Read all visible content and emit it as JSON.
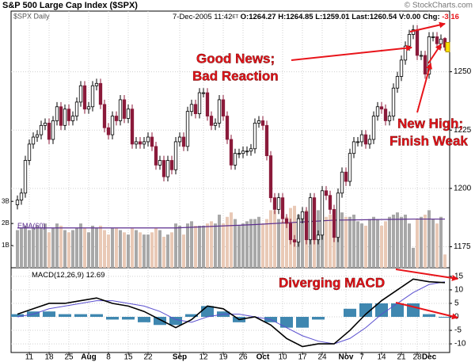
{
  "chart_data": {
    "type": "candlestick",
    "title": "S&P 500 Large Cap Index ($SPX)",
    "source": "© StockCharts.com",
    "symbol_label": "$SPX Daily",
    "date": "7-Dec-2005 11:42",
    "timezone": "ET",
    "quote": [
      "O:1264.27",
      "H:1264.85",
      "L:1259.01",
      "Last:1260.54",
      "V:0.00"
    ],
    "change_label": "Chg:",
    "change": "-3.16",
    "up_color": "#000000",
    "down_color": "#8b1a3a",
    "open": [
      1193,
      1195,
      1198,
      1212,
      1219,
      1222,
      1223,
      1227,
      1228,
      1221,
      1229,
      1235,
      1227,
      1234,
      1229,
      1231,
      1237,
      1244,
      1234,
      1235,
      1244,
      1245,
      1236,
      1226,
      1223,
      1231,
      1229,
      1238,
      1230,
      1234,
      1219,
      1220,
      1219,
      1220,
      1222,
      1218,
      1210,
      1212,
      1205,
      1212,
      1208,
      1220,
      1222,
      1218,
      1233,
      1236,
      1232,
      1241,
      1241,
      1231,
      1227,
      1228,
      1238,
      1231,
      1221,
      1210,
      1215,
      1215,
      1216,
      1216,
      1217,
      1228,
      1229,
      1227,
      1214,
      1196,
      1191,
      1196,
      1187,
      1185,
      1178,
      1177,
      1187,
      1190,
      1178,
      1196,
      1178,
      1180,
      1199,
      1197,
      1191,
      1179,
      1198,
      1207,
      1203,
      1215,
      1220,
      1220,
      1223,
      1219,
      1221,
      1231,
      1235,
      1234,
      1229,
      1231,
      1243,
      1248,
      1255,
      1261,
      1266,
      1268,
      1257,
      1257,
      1249,
      1265,
      1265,
      1262,
      1264.27
    ],
    "high": [
      1197,
      1200,
      1214,
      1221,
      1224,
      1225,
      1229,
      1230,
      1230,
      1231,
      1237,
      1237,
      1236,
      1236,
      1233,
      1239,
      1246,
      1246,
      1237,
      1246,
      1247,
      1247,
      1238,
      1228,
      1233,
      1233,
      1240,
      1240,
      1236,
      1236,
      1222,
      1222,
      1222,
      1224,
      1224,
      1220,
      1214,
      1214,
      1214,
      1214,
      1222,
      1224,
      1224,
      1235,
      1238,
      1238,
      1243,
      1243,
      1243,
      1233,
      1230,
      1240,
      1240,
      1233,
      1223,
      1217,
      1217,
      1218,
      1218,
      1219,
      1230,
      1231,
      1231,
      1229,
      1216,
      1198,
      1198,
      1198,
      1189,
      1187,
      1180,
      1189,
      1192,
      1192,
      1198,
      1198,
      1182,
      1201,
      1201,
      1199,
      1193,
      1200,
      1209,
      1209,
      1217,
      1222,
      1222,
      1225,
      1225,
      1223,
      1233,
      1237,
      1237,
      1236,
      1233,
      1245,
      1250,
      1257,
      1263,
      1268,
      1270,
      1270,
      1259,
      1259,
      1267,
      1267,
      1267,
      1266,
      1264.85
    ],
    "low": [
      1191,
      1193,
      1196,
      1210,
      1217,
      1220,
      1221,
      1225,
      1219,
      1219,
      1227,
      1225,
      1225,
      1227,
      1227,
      1229,
      1235,
      1232,
      1232,
      1233,
      1242,
      1234,
      1224,
      1221,
      1221,
      1227,
      1227,
      1228,
      1228,
      1217,
      1217,
      1217,
      1217,
      1218,
      1216,
      1208,
      1208,
      1203,
      1203,
      1206,
      1206,
      1218,
      1216,
      1216,
      1231,
      1230,
      1230,
      1239,
      1229,
      1225,
      1225,
      1226,
      1229,
      1219,
      1208,
      1208,
      1213,
      1213,
      1214,
      1214,
      1215,
      1226,
      1225,
      1212,
      1194,
      1189,
      1189,
      1185,
      1183,
      1176,
      1175,
      1175,
      1185,
      1176,
      1176,
      1176,
      1176,
      1178,
      1195,
      1189,
      1177,
      1177,
      1196,
      1201,
      1201,
      1213,
      1218,
      1218,
      1217,
      1217,
      1219,
      1229,
      1232,
      1227,
      1227,
      1229,
      1241,
      1246,
      1253,
      1259,
      1264,
      1255,
      1255,
      1247,
      1247,
      1263,
      1260,
      1260,
      1259.01
    ],
    "close": [
      1195,
      1198,
      1212,
      1219,
      1222,
      1223,
      1227,
      1228,
      1221,
      1229,
      1235,
      1227,
      1234,
      1229,
      1231,
      1237,
      1244,
      1234,
      1235,
      1244,
      1245,
      1236,
      1226,
      1223,
      1231,
      1229,
      1238,
      1230,
      1234,
      1219,
      1220,
      1219,
      1220,
      1222,
      1218,
      1210,
      1212,
      1205,
      1212,
      1208,
      1220,
      1222,
      1218,
      1233,
      1236,
      1232,
      1241,
      1241,
      1231,
      1227,
      1228,
      1238,
      1231,
      1221,
      1210,
      1215,
      1215,
      1216,
      1216,
      1217,
      1228,
      1229,
      1227,
      1214,
      1196,
      1191,
      1196,
      1187,
      1185,
      1178,
      1177,
      1187,
      1190,
      1178,
      1196,
      1178,
      1180,
      1199,
      1197,
      1191,
      1179,
      1198,
      1207,
      1203,
      1215,
      1220,
      1220,
      1223,
      1219,
      1221,
      1231,
      1235,
      1234,
      1229,
      1231,
      1243,
      1248,
      1255,
      1261,
      1266,
      1268,
      1257,
      1257,
      1249,
      1265,
      1265,
      1262,
      1264,
      1260.54
    ],
    "xlim": [
      -1.6,
      109.2
    ],
    "xticks": [
      {
        "value": 3,
        "label": "11"
      },
      {
        "value": 8,
        "label": "18"
      },
      {
        "value": 13,
        "label": "25"
      },
      {
        "value": 18,
        "label": "Aug"
      },
      {
        "value": 23,
        "label": "8"
      },
      {
        "value": 28,
        "label": "15"
      },
      {
        "value": 33,
        "label": "22"
      },
      {
        "value": 41,
        "label": "Sep"
      },
      {
        "value": 47,
        "label": "12"
      },
      {
        "value": 52,
        "label": "19"
      },
      {
        "value": 57,
        "label": "26"
      },
      {
        "value": 62,
        "label": "Oct"
      },
      {
        "value": 67,
        "label": "10"
      },
      {
        "value": 72,
        "label": "17"
      },
      {
        "value": 77,
        "label": "24"
      },
      {
        "value": 83,
        "label": "Nov"
      },
      {
        "value": 87,
        "label": "7"
      },
      {
        "value": 92,
        "label": "14"
      },
      {
        "value": 97,
        "label": "21"
      },
      {
        "value": 101,
        "label": "28"
      },
      {
        "value": 104,
        "label": "Dec"
      }
    ],
    "ylim": [
      1166,
      1276
    ],
    "yticks": [
      1175,
      1200,
      1225,
      1250
    ],
    "grid": true,
    "volume": {
      "up_color": "#a8a8a8",
      "down_color": "#e9c9b6",
      "ylim": [
        0,
        11.6
      ],
      "ticks": [
        {
          "value": 1,
          "label": "1B"
        },
        {
          "value": 2,
          "label": "2B"
        },
        {
          "value": 3,
          "label": "3B"
        }
      ],
      "values": [
        1.7,
        1.8,
        1.9,
        1.7,
        1.8,
        1.9,
        1.8,
        2.0,
        1.6,
        1.8,
        2.0,
        1.9,
        1.7,
        1.6,
        1.7,
        1.8,
        2.0,
        1.8,
        1.6,
        1.9,
        1.8,
        1.9,
        1.7,
        1.5,
        1.8,
        1.8,
        1.7,
        1.6,
        1.5,
        1.8,
        1.7,
        1.6,
        1.5,
        1.5,
        1.6,
        1.8,
        1.7,
        1.4,
        1.5,
        1.6,
        2.0,
        1.9,
        1.5,
        2.0,
        2.1,
        1.9,
        1.9,
        1.9,
        2.0,
        2.1,
        2.0,
        2.4,
        2.0,
        2.3,
        2.5,
        2.2,
        1.9,
        2.0,
        2.1,
        2.2,
        2.2,
        2.3,
        2.0,
        2.2,
        2.6,
        2.6,
        2.2,
        2.1,
        2.3,
        2.7,
        2.8,
        2.4,
        2.2,
        2.6,
        2.8,
        2.9,
        2.6,
        2.4,
        2.3,
        2.4,
        2.5,
        2.2,
        2.5,
        2.3,
        2.3,
        2.4,
        2.1,
        2.0,
        1.9,
        2.2,
        2.3,
        2.2,
        1.9,
        2.1,
        2.3,
        2.4,
        2.5,
        2.3,
        2.4,
        2.0,
        0.9,
        2.2,
        2.3,
        2.4,
        2.6,
        2.2,
        2.0,
        2.3,
        0.6
      ],
      "ema": {
        "name": "EMA(60)",
        "color": "#5b2d8e",
        "x": [
          0,
          20,
          40,
          60,
          80,
          100,
          108
        ],
        "values": [
          1.8,
          1.8,
          1.8,
          1.95,
          2.15,
          2.2,
          2.2
        ]
      }
    },
    "macd": {
      "title": "MACD(12,26,9)",
      "last": "12.69",
      "ylim": [
        -13.2,
        18.2
      ],
      "yticks": [
        -10,
        -5,
        0,
        5,
        10,
        15
      ],
      "x": [
        0,
        4,
        8,
        12,
        16,
        20,
        24,
        28,
        32,
        36,
        40,
        44,
        48,
        52,
        56,
        60,
        64,
        68,
        72,
        76,
        80,
        84,
        88,
        92,
        96,
        100,
        104,
        108
      ],
      "macd_line": {
        "color": "#000000",
        "values": [
          1,
          3,
          5,
          5,
          6,
          7,
          5,
          4,
          2,
          -1,
          -4,
          -1,
          4,
          3,
          -1,
          0,
          -3,
          -8,
          -11,
          -10,
          -10,
          -5,
          1,
          6,
          10,
          14,
          13,
          12.69
        ]
      },
      "signal": {
        "color": "#5a4fcf",
        "values": [
          0,
          1,
          3,
          4,
          5,
          6,
          6,
          5,
          4,
          2,
          -1,
          -2,
          0,
          1,
          1,
          0,
          -1,
          -4,
          -7,
          -9,
          -10,
          -8,
          -4,
          1,
          5,
          9,
          12,
          13
        ]
      },
      "histogram": {
        "color": "#3f87b0",
        "values": [
          1,
          2,
          2,
          1,
          1,
          1,
          -1,
          -1,
          -2,
          -3,
          -3,
          1,
          4,
          2,
          -2,
          0,
          -2,
          -4,
          -4,
          -1,
          0,
          3,
          5,
          5,
          5,
          5,
          1,
          -0.3
        ]
      }
    },
    "annotations": [
      {
        "lines": [
          "Good News;",
          "Bad Reaction"
        ]
      },
      {
        "lines": [
          "New High;",
          "Finish Weak"
        ]
      },
      {
        "lines": [
          "Diverging MACD"
        ]
      }
    ]
  }
}
